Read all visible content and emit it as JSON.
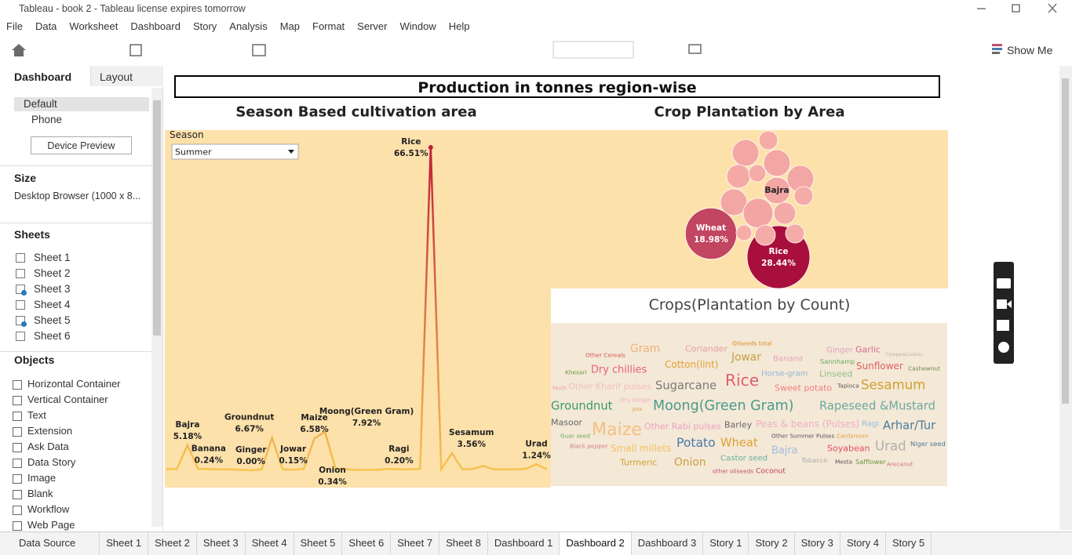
{
  "window": {
    "title": "Tableau - book 2 - Tableau license expires tomorrow"
  },
  "menu": [
    "File",
    "Data",
    "Worksheet",
    "Dashboard",
    "Story",
    "Analysis",
    "Map",
    "Format",
    "Server",
    "Window",
    "Help"
  ],
  "toolbar": {
    "show_me": "Show Me"
  },
  "sidebar": {
    "tabs": [
      "Dashboard",
      "Layout"
    ],
    "devices": [
      "Default",
      "Phone"
    ],
    "device_preview": "Device Preview",
    "size_heading": "Size",
    "size_value": "Desktop Browser (1000 x 8...",
    "sheets_heading": "Sheets",
    "sheets": [
      "Sheet 1",
      "Sheet 2",
      "Sheet 3",
      "Sheet 4",
      "Sheet 5",
      "Sheet 6"
    ],
    "objects_heading": "Objects",
    "objects": [
      "Horizontal Container",
      "Vertical Container",
      "Text",
      "Extension",
      "Ask Data",
      "Data Story",
      "Image",
      "Blank",
      "Workflow",
      "Web Page"
    ]
  },
  "dashboard": {
    "title": "Production in tonnes region-wise"
  },
  "chart_data": [
    {
      "type": "line",
      "title": "Season Based cultivation area",
      "filter": {
        "label": "Season",
        "value": "Summer"
      },
      "categories": [
        null,
        null,
        "Bajra",
        null,
        "Banana",
        null,
        null,
        null,
        "Ginger",
        null,
        "Groundnut",
        null,
        "Jowar",
        null,
        "Maize",
        "Moong(Green Gram)",
        "Onion",
        null,
        null,
        null,
        null,
        null,
        "Ragi",
        null,
        null,
        "Rice",
        null,
        "Sesamum",
        null,
        null,
        null,
        null,
        null,
        null,
        null,
        "Urad",
        null
      ],
      "values": [
        0.2,
        0.3,
        5.18,
        0.3,
        0.24,
        0.2,
        0.2,
        0.1,
        0,
        0.2,
        6.67,
        0.2,
        0.15,
        0.3,
        6.58,
        7.92,
        0.34,
        0.2,
        0.1,
        0.1,
        0.1,
        0.3,
        0.2,
        0.2,
        0.3,
        66.51,
        0.2,
        3.56,
        0.2,
        0.3,
        0.9,
        0.2,
        0.2,
        0.2,
        0.3,
        1.24,
        0.2
      ],
      "value_labels": [
        null,
        null,
        "5.18%",
        null,
        "0.24%",
        null,
        null,
        null,
        "0.00%",
        null,
        "6.67%",
        null,
        "0.15%",
        null,
        "6.58%",
        "7.92%",
        "0.34%",
        null,
        null,
        null,
        null,
        null,
        "0.20%",
        null,
        null,
        "66.51%",
        null,
        "3.56%",
        null,
        null,
        null,
        null,
        null,
        null,
        null,
        "1.24%",
        null
      ],
      "color_range": [
        "#f5c451",
        "#c0203a"
      ]
    },
    {
      "type": "bubble",
      "title": "Crop Plantation by Area",
      "categories": [
        "Rice",
        "Wheat",
        "Bajra",
        null,
        null,
        null,
        null,
        null,
        null,
        null,
        null,
        null,
        null,
        null,
        null,
        null
      ],
      "values": [
        28.44,
        18.98,
        5.1,
        2.56,
        5.14,
        5.14,
        5.14,
        4.0,
        2.15,
        5.14,
        6.42,
        3.48,
        2.56,
        2.56,
        3.0,
        1.78
      ],
      "value_labels": [
        "28.44%",
        "18.98%",
        null,
        null,
        null,
        null,
        null,
        null,
        null,
        null,
        null,
        null,
        null,
        null,
        null,
        null
      ],
      "color_range": [
        "#f7b0aa",
        "#a80f3c"
      ]
    },
    {
      "type": "wordcloud",
      "title": "Crops(Plantation by Count)",
      "words": [
        "Other Cereals",
        "Gram",
        "Coriander",
        "Oilseeds total",
        "Ginger",
        "Garlic",
        "Cowpea(Lobia)",
        "Khesari",
        "Dry chillies",
        "Cotton(lint)",
        "Jowar",
        "Banana",
        "Sannhamp",
        "Sunflower",
        "Cashewnut",
        "Horse-gram",
        "Linseed",
        "Moth",
        "Other Kharif pulses",
        "Sugarcane",
        "Rice",
        "Sweet potato",
        "Tapioca",
        "Sesamum",
        "Dry Ginger",
        "Jute",
        "Groundnut",
        "Moong(Green Gram)",
        "Rapeseed &Mustard",
        "Masoor",
        "Maize",
        "Other Rabi pulses",
        "Barley",
        "Peas & beans (Pulses)",
        "Ragi",
        "Arhar/Tur",
        "Guar seed",
        "Other Summer Pulses",
        "Cardamom",
        "Potato",
        "Wheat",
        "Black pepper",
        "Small millets",
        "Bajra",
        "Urad",
        "Niger seed",
        "Castor seed",
        "Tobacco",
        "Soyabean",
        "Mesta",
        "Safflower",
        "Arecanut",
        "Turmeric",
        "Onion",
        "other oilseeds",
        "Coconut"
      ]
    }
  ],
  "tabs": [
    "Data Source",
    "Sheet 1",
    "Sheet 2",
    "Sheet 3",
    "Sheet 4",
    "Sheet 5",
    "Sheet 6",
    "Sheet 7",
    "Sheet 8",
    "Dashboard 1",
    "Dashboard 2",
    "Dashboard 3",
    "Story 1",
    "Story 2",
    "Story 3",
    "Story 4",
    "Story 5"
  ]
}
